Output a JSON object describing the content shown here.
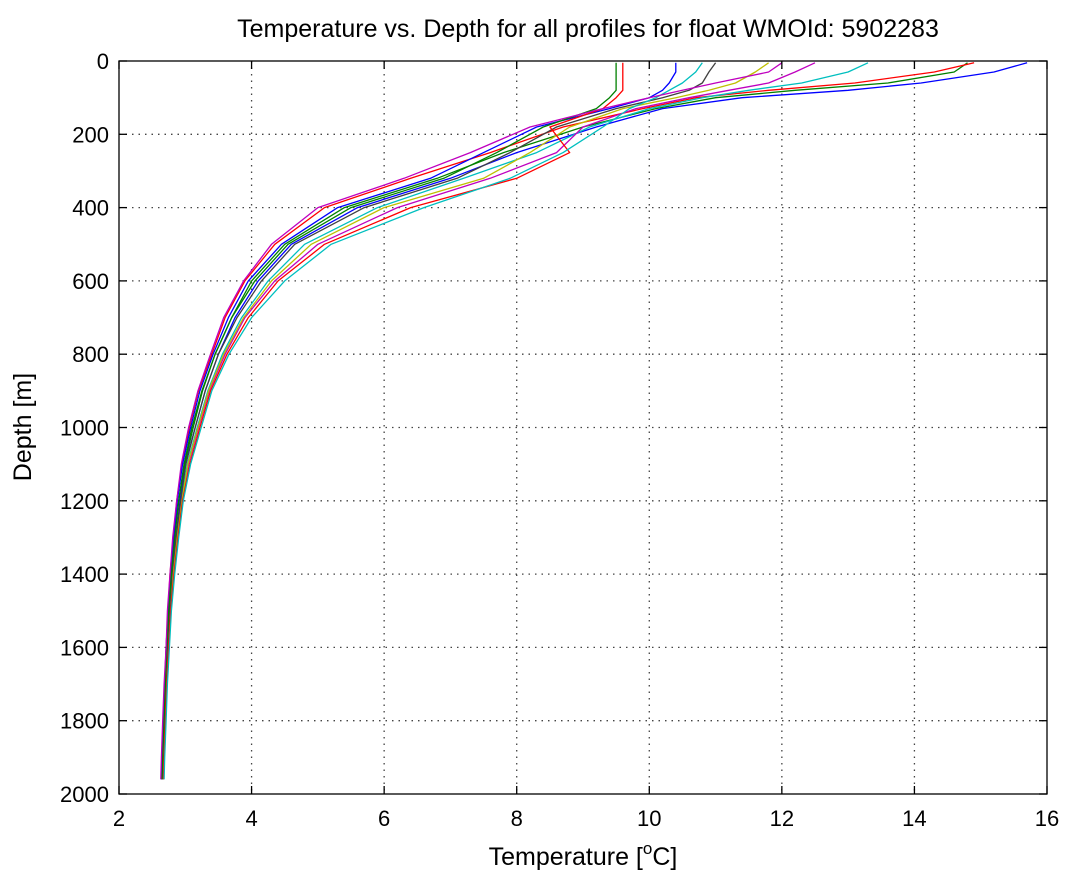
{
  "chart_data": {
    "type": "line",
    "title": "Temperature vs. Depth for all profiles for float WMOId: 5902283",
    "xlabel": "Temperature [",
    "xlabel_sup": "o",
    "xlabel_suffix": "C]",
    "ylabel": "Depth [m]",
    "xlim": [
      2,
      16
    ],
    "ylim": [
      2000,
      0
    ],
    "y_reversed": true,
    "grid": true,
    "xticks": [
      "2",
      "4",
      "6",
      "8",
      "10",
      "12",
      "14",
      "16"
    ],
    "yticks": [
      "0",
      "200",
      "400",
      "600",
      "800",
      "1000",
      "1200",
      "1400",
      "1600",
      "1800",
      "2000"
    ],
    "series_colors": [
      "#0000ff",
      "#008000",
      "#ff0000",
      "#00bfbf",
      "#bf00bf",
      "#bfbf00",
      "#404040"
    ],
    "depth": [
      5,
      30,
      60,
      80,
      100,
      130,
      180,
      250,
      320,
      400,
      500,
      600,
      700,
      800,
      900,
      1000,
      1100,
      1200,
      1300,
      1400,
      1500,
      1600,
      1700,
      1800,
      1900,
      1960
    ],
    "series": [
      {
        "values": [
          15.7,
          15.2,
          14.1,
          13.0,
          11.4,
          10.2,
          9.2,
          8.0,
          7.0,
          5.6,
          4.6,
          4.1,
          3.75,
          3.5,
          3.3,
          3.15,
          3.0,
          2.92,
          2.86,
          2.8,
          2.76,
          2.73,
          2.71,
          2.69,
          2.67,
          2.66
        ]
      },
      {
        "values": [
          14.8,
          14.6,
          13.6,
          12.2,
          11.0,
          10.1,
          9.0,
          7.8,
          6.8,
          5.4,
          4.5,
          4.0,
          3.7,
          3.45,
          3.25,
          3.1,
          2.98,
          2.9,
          2.84,
          2.79,
          2.75,
          2.72,
          2.7,
          2.68,
          2.66,
          2.65
        ]
      },
      {
        "values": [
          14.9,
          14.3,
          13.1,
          11.8,
          10.7,
          9.9,
          8.7,
          7.6,
          6.4,
          5.1,
          4.35,
          3.9,
          3.6,
          3.4,
          3.2,
          3.06,
          2.95,
          2.87,
          2.82,
          2.77,
          2.74,
          2.71,
          2.69,
          2.67,
          2.65,
          2.64
        ]
      },
      {
        "values": [
          13.3,
          13.0,
          12.3,
          11.5,
          10.8,
          10.0,
          9.1,
          8.3,
          7.2,
          5.9,
          4.8,
          4.25,
          3.85,
          3.56,
          3.34,
          3.18,
          3.03,
          2.94,
          2.87,
          2.81,
          2.77,
          2.74,
          2.71,
          2.69,
          2.67,
          2.66
        ]
      },
      {
        "values": [
          12.5,
          12.2,
          11.8,
          11.2,
          10.6,
          9.8,
          9.0,
          8.6,
          7.6,
          6.2,
          5.0,
          4.35,
          3.9,
          3.6,
          3.36,
          3.2,
          3.05,
          2.95,
          2.88,
          2.82,
          2.78,
          2.75,
          2.72,
          2.7,
          2.68,
          2.67
        ]
      },
      {
        "values": [
          11.8,
          11.6,
          11.3,
          10.9,
          10.4,
          9.6,
          8.8,
          8.2,
          7.5,
          6.0,
          4.9,
          4.3,
          3.88,
          3.58,
          3.35,
          3.19,
          3.04,
          2.95,
          2.88,
          2.82,
          2.78,
          2.74,
          2.72,
          2.7,
          2.68,
          2.67
        ]
      },
      {
        "values": [
          11.0,
          10.9,
          10.8,
          10.6,
          10.2,
          9.5,
          8.6,
          7.9,
          7.1,
          5.7,
          4.65,
          4.15,
          3.78,
          3.5,
          3.3,
          3.15,
          3.01,
          2.93,
          2.86,
          2.8,
          2.76,
          2.73,
          2.7,
          2.68,
          2.66,
          2.65
        ]
      },
      {
        "values": [
          10.4,
          10.4,
          10.3,
          10.2,
          10.0,
          9.4,
          8.3,
          7.5,
          6.7,
          5.3,
          4.45,
          3.95,
          3.65,
          3.42,
          3.22,
          3.08,
          2.96,
          2.88,
          2.83,
          2.78,
          2.74,
          2.71,
          2.69,
          2.67,
          2.65,
          2.64
        ]
      },
      {
        "values": [
          9.5,
          9.5,
          9.5,
          9.5,
          9.4,
          9.2,
          8.4,
          7.7,
          6.9,
          5.5,
          4.55,
          4.05,
          3.7,
          3.45,
          3.26,
          3.12,
          2.99,
          2.9,
          2.84,
          2.79,
          2.75,
          2.72,
          2.7,
          2.68,
          2.66,
          2.65
        ]
      },
      {
        "values": [
          9.6,
          9.6,
          9.6,
          9.6,
          9.5,
          9.3,
          8.5,
          8.8,
          8.0,
          6.4,
          5.1,
          4.4,
          3.95,
          3.63,
          3.38,
          3.22,
          3.07,
          2.96,
          2.89,
          2.83,
          2.78,
          2.75,
          2.72,
          2.7,
          2.68,
          2.67
        ]
      },
      {
        "values": [
          10.8,
          10.7,
          10.5,
          10.3,
          10.1,
          9.7,
          9.3,
          8.7,
          7.9,
          6.6,
          5.2,
          4.5,
          4.0,
          3.66,
          3.4,
          3.24,
          3.08,
          2.97,
          2.9,
          2.84,
          2.79,
          2.76,
          2.73,
          2.71,
          2.69,
          2.68
        ]
      },
      {
        "values": [
          12.0,
          11.8,
          11.0,
          10.5,
          10.0,
          9.3,
          8.2,
          7.3,
          6.3,
          5.0,
          4.3,
          3.88,
          3.58,
          3.38,
          3.19,
          3.05,
          2.94,
          2.87,
          2.81,
          2.77,
          2.73,
          2.71,
          2.68,
          2.66,
          2.64,
          2.63
        ]
      }
    ]
  }
}
